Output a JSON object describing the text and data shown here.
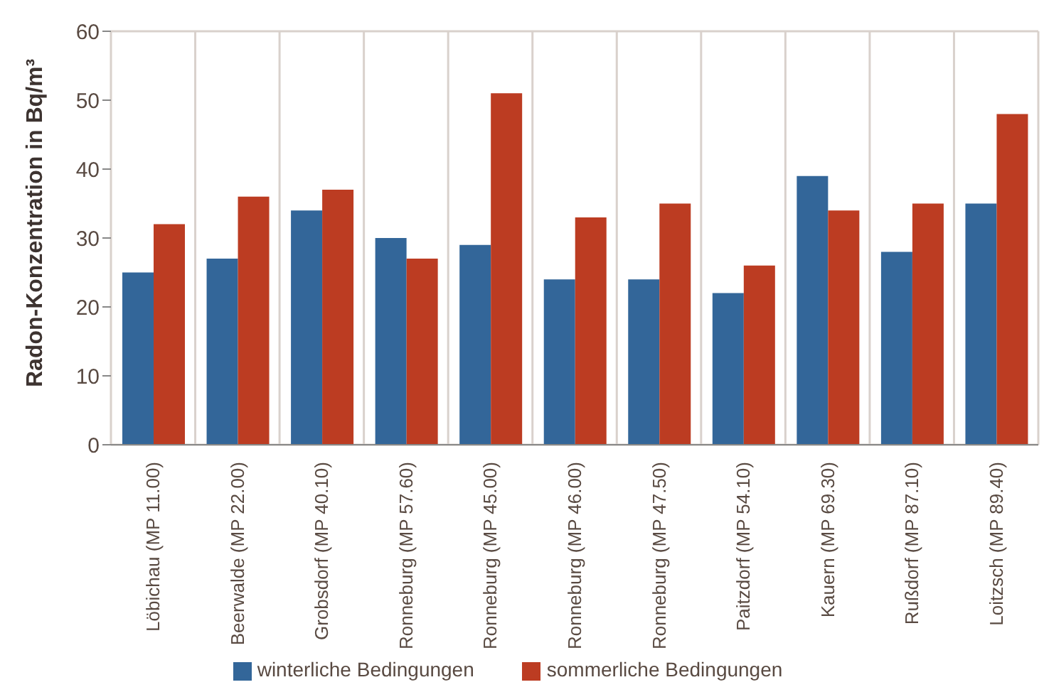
{
  "chart_data": {
    "type": "bar",
    "ylabel": "Radon-Konzentration in Bq/m³",
    "categories": [
      "Löbichau (MP 11.00)",
      "Beerwalde (MP 22.00)",
      "Grobsdorf (MP 40.10)",
      "Ronneburg (MP 57.60)",
      "Ronneburg (MP 45.00)",
      "Ronneburg (MP 46.00)",
      "Ronneburg (MP 47.50)",
      "Paitzdorf (MP 54.10)",
      "Kauern (MP 69.30)",
      "Rußdorf (MP 87.10)",
      "Loitzsch (MP 89.40)"
    ],
    "series": [
      {
        "name": "winterliche Bedingungen",
        "color": "#336699",
        "values": [
          25,
          27,
          34,
          30,
          29,
          24,
          24,
          22,
          39,
          28,
          35
        ]
      },
      {
        "name": "sommerliche Bedingungen",
        "color": "#bc3c22",
        "values": [
          32,
          36,
          37,
          27,
          51,
          33,
          35,
          26,
          34,
          35,
          48
        ]
      }
    ],
    "ylim": [
      0,
      60
    ],
    "yticks": [
      0,
      10,
      20,
      30,
      40,
      50,
      60
    ],
    "grid": true,
    "legend": "bottom"
  }
}
